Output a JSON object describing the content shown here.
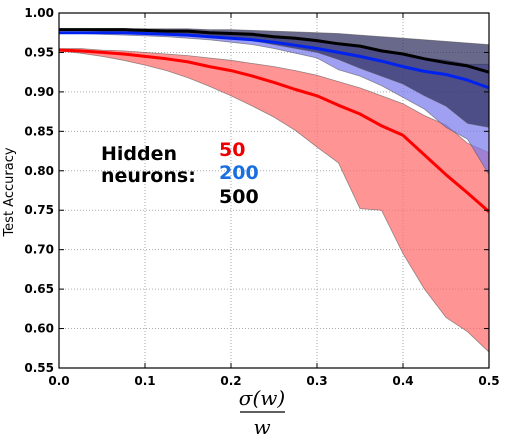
{
  "chart_data": {
    "type": "line",
    "xlabel_numerator": "σ(w)",
    "xlabel_denominator": "w",
    "ylabel": "Test Accuracy",
    "xlim": [
      0.0,
      0.5
    ],
    "ylim": [
      0.55,
      1.0
    ],
    "x_ticks": [
      "0.0",
      "0.1",
      "0.2",
      "0.3",
      "0.4",
      "0.5"
    ],
    "y_ticks": [
      "0.55",
      "0.60",
      "0.65",
      "0.70",
      "0.75",
      "0.80",
      "0.85",
      "0.90",
      "0.95",
      "1.00"
    ],
    "grid": true,
    "legend": {
      "title_line1": "Hidden",
      "title_line2": "neurons:",
      "entries": [
        "50",
        "200",
        "500"
      ]
    },
    "x": [
      0.0,
      0.025,
      0.05,
      0.075,
      0.1,
      0.125,
      0.15,
      0.175,
      0.2,
      0.225,
      0.25,
      0.275,
      0.3,
      0.325,
      0.35,
      0.375,
      0.4,
      0.425,
      0.45,
      0.475,
      0.5
    ],
    "series": [
      {
        "name": "50",
        "color": "#ff0000",
        "band_color": "#ff6666",
        "mean": [
          0.953,
          0.952,
          0.95,
          0.948,
          0.945,
          0.942,
          0.938,
          0.932,
          0.927,
          0.92,
          0.912,
          0.903,
          0.895,
          0.883,
          0.872,
          0.857,
          0.845,
          0.82,
          0.795,
          0.772,
          0.748
        ],
        "upper": [
          0.955,
          0.955,
          0.953,
          0.952,
          0.95,
          0.948,
          0.946,
          0.943,
          0.94,
          0.936,
          0.932,
          0.927,
          0.921,
          0.913,
          0.905,
          0.895,
          0.885,
          0.87,
          0.858,
          0.835,
          0.823
        ],
        "lower": [
          0.952,
          0.949,
          0.945,
          0.94,
          0.934,
          0.927,
          0.918,
          0.907,
          0.895,
          0.882,
          0.868,
          0.851,
          0.83,
          0.81,
          0.752,
          0.75,
          0.695,
          0.65,
          0.614,
          0.596,
          0.57
        ]
      },
      {
        "name": "200",
        "color": "#0022ee",
        "band_color": "#7777ee",
        "mean": [
          0.975,
          0.975,
          0.975,
          0.975,
          0.974,
          0.973,
          0.972,
          0.97,
          0.968,
          0.966,
          0.963,
          0.959,
          0.955,
          0.95,
          0.945,
          0.939,
          0.932,
          0.926,
          0.922,
          0.915,
          0.905
        ],
        "upper": [
          0.976,
          0.976,
          0.976,
          0.976,
          0.976,
          0.976,
          0.975,
          0.974,
          0.973,
          0.971,
          0.97,
          0.967,
          0.964,
          0.961,
          0.957,
          0.953,
          0.947,
          0.943,
          0.94,
          0.935,
          0.935
        ],
        "lower": [
          0.974,
          0.974,
          0.973,
          0.972,
          0.971,
          0.97,
          0.968,
          0.966,
          0.963,
          0.96,
          0.955,
          0.949,
          0.943,
          0.928,
          0.92,
          0.908,
          0.893,
          0.878,
          0.855,
          0.84,
          0.795
        ]
      },
      {
        "name": "500",
        "color": "#000000",
        "band_color": "#2a2a5a",
        "mean": [
          0.979,
          0.979,
          0.979,
          0.979,
          0.978,
          0.977,
          0.977,
          0.975,
          0.974,
          0.973,
          0.97,
          0.968,
          0.965,
          0.961,
          0.958,
          0.952,
          0.948,
          0.942,
          0.937,
          0.933,
          0.925
        ],
        "upper": [
          0.98,
          0.98,
          0.98,
          0.98,
          0.98,
          0.98,
          0.98,
          0.979,
          0.979,
          0.978,
          0.977,
          0.976,
          0.975,
          0.974,
          0.972,
          0.97,
          0.968,
          0.966,
          0.964,
          0.962,
          0.96
        ],
        "lower": [
          0.978,
          0.978,
          0.977,
          0.977,
          0.976,
          0.975,
          0.973,
          0.971,
          0.968,
          0.965,
          0.96,
          0.955,
          0.95,
          0.941,
          0.93,
          0.92,
          0.91,
          0.895,
          0.882,
          0.86,
          0.855
        ]
      }
    ]
  }
}
